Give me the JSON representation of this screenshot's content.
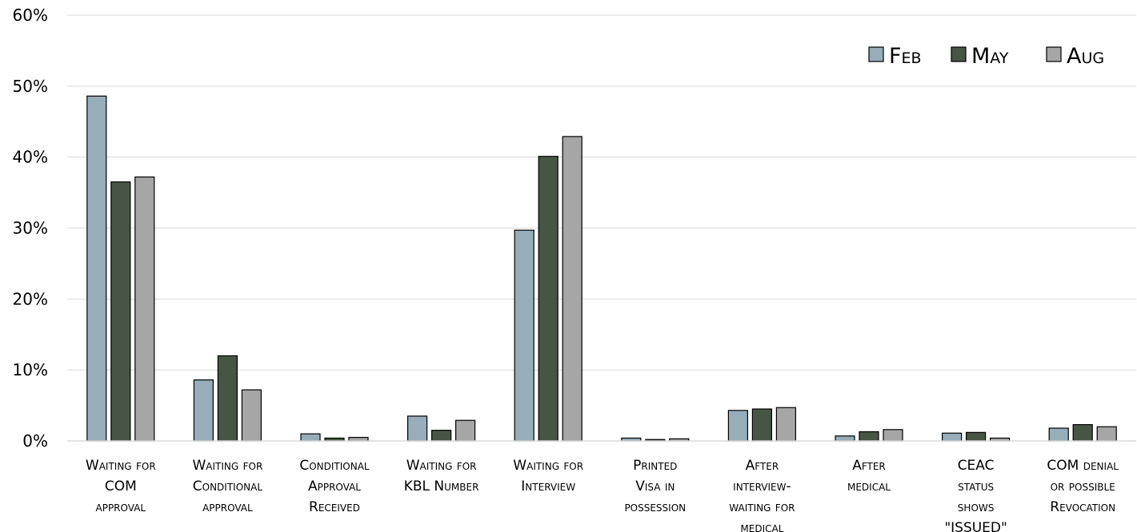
{
  "chart_data": {
    "type": "bar",
    "title": "",
    "xlabel": "",
    "ylabel": "",
    "ylim": [
      0,
      60
    ],
    "yticks": [
      "0%",
      "10%",
      "20%",
      "30%",
      "40%",
      "50%",
      "60%"
    ],
    "grid": true,
    "legend_position": "top-right",
    "categories": [
      [
        "Waiting for",
        "COM",
        "approval"
      ],
      [
        "Waiting for",
        "Conditional",
        "approval"
      ],
      [
        "Conditional",
        "Approval",
        "Received"
      ],
      [
        "Waiting for",
        "KBL Number"
      ],
      [
        "Waiting for",
        "Interview"
      ],
      [
        "Printed",
        "Visa in",
        "possession"
      ],
      [
        "After",
        "interview-",
        "waiting for",
        "medical"
      ],
      [
        "After",
        "medical"
      ],
      [
        "CEAC",
        "status",
        "shows",
        "\"ISSUED\""
      ],
      [
        "COM denial",
        "or possible",
        "Revocation"
      ]
    ],
    "series": [
      {
        "name": "Feb",
        "color": "#97adb9",
        "values": [
          48.6,
          8.6,
          1.0,
          3.5,
          29.7,
          0.4,
          4.3,
          0.7,
          1.1,
          1.8
        ]
      },
      {
        "name": "May",
        "color": "#475545",
        "values": [
          36.5,
          12.0,
          0.4,
          1.5,
          40.1,
          0.2,
          4.5,
          1.3,
          1.2,
          2.3
        ]
      },
      {
        "name": "Aug",
        "color": "#a6a6a6",
        "values": [
          37.2,
          7.2,
          0.5,
          2.9,
          42.9,
          0.3,
          4.7,
          1.6,
          0.4,
          2.0
        ]
      }
    ]
  }
}
